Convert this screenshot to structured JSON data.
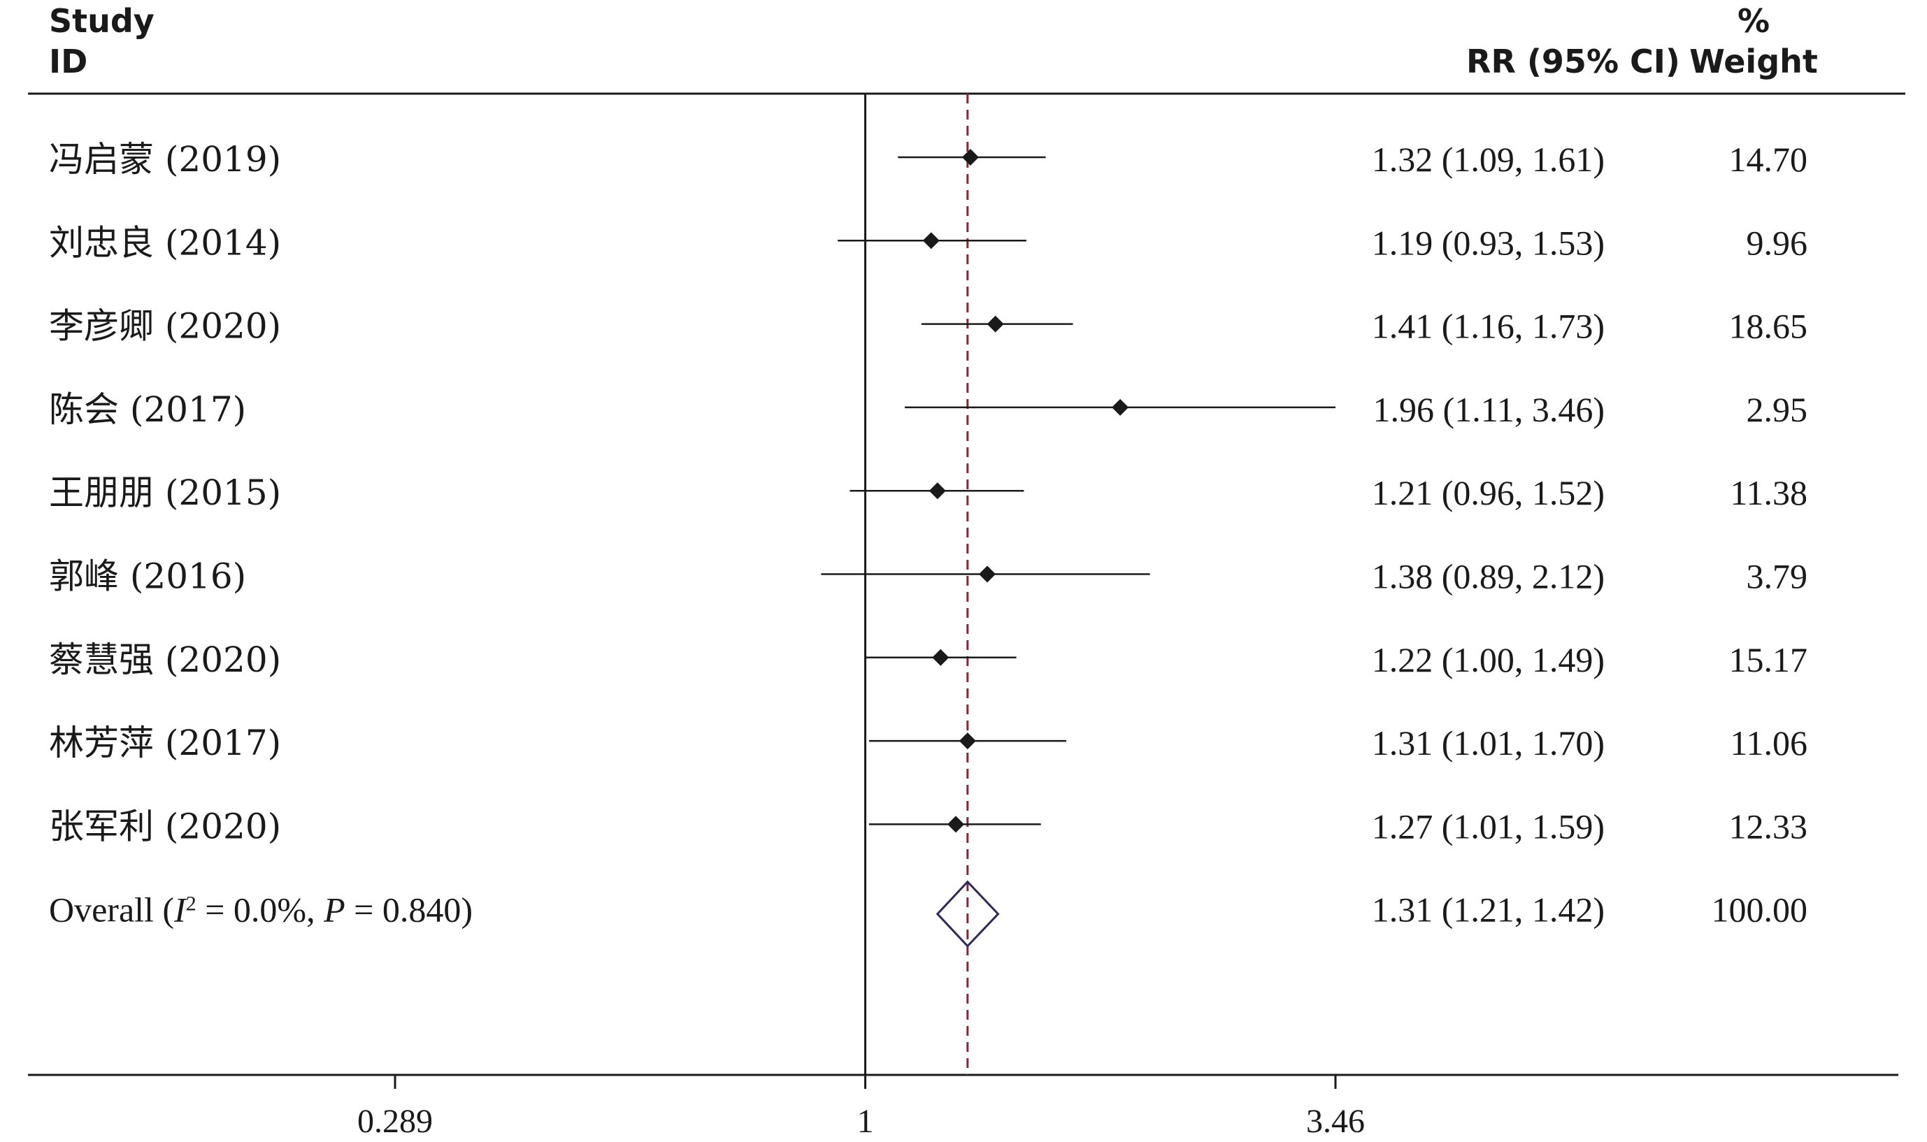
{
  "chart_data": {
    "type": "forest",
    "measure": "RR",
    "x_scale": "log",
    "xlim": [
      0.289,
      3.46
    ],
    "null_line": 1,
    "pooled_reference_line": 1.31,
    "xticks": [
      {
        "value": 0.289,
        "label": "0.289"
      },
      {
        "value": 1,
        "label": "1"
      },
      {
        "value": 3.46,
        "label": "3.46"
      }
    ],
    "headers": {
      "study_line1": "Study",
      "study_line2": "ID",
      "effect": "RR (95% CI)",
      "weight_line1": "%",
      "weight_line2": "Weight"
    },
    "studies": [
      {
        "name": "冯启蒙 (2019)",
        "rr": 1.32,
        "lo": 1.09,
        "hi": 1.61,
        "ci_text": "1.32 (1.09, 1.61)",
        "weight": "14.70"
      },
      {
        "name": "刘忠良 (2014)",
        "rr": 1.19,
        "lo": 0.93,
        "hi": 1.53,
        "ci_text": "1.19 (0.93, 1.53)",
        "weight": "9.96"
      },
      {
        "name": "李彦卿 (2020)",
        "rr": 1.41,
        "lo": 1.16,
        "hi": 1.73,
        "ci_text": "1.41 (1.16, 1.73)",
        "weight": "18.65"
      },
      {
        "name": "陈会 (2017)",
        "rr": 1.96,
        "lo": 1.11,
        "hi": 3.46,
        "ci_text": "1.96 (1.11, 3.46)",
        "weight": "2.95"
      },
      {
        "name": "王朋朋 (2015)",
        "rr": 1.21,
        "lo": 0.96,
        "hi": 1.52,
        "ci_text": "1.21 (0.96, 1.52)",
        "weight": "11.38"
      },
      {
        "name": "郭峰 (2016)",
        "rr": 1.38,
        "lo": 0.89,
        "hi": 2.12,
        "ci_text": "1.38 (0.89, 2.12)",
        "weight": "3.79"
      },
      {
        "name": "蔡慧强 (2020)",
        "rr": 1.22,
        "lo": 1.0,
        "hi": 1.49,
        "ci_text": "1.22 (1.00, 1.49)",
        "weight": "15.17"
      },
      {
        "name": "林芳萍 (2017)",
        "rr": 1.31,
        "lo": 1.01,
        "hi": 1.7,
        "ci_text": "1.31 (1.01, 1.70)",
        "weight": "11.06"
      },
      {
        "name": "张军利 (2020)",
        "rr": 1.27,
        "lo": 1.01,
        "hi": 1.59,
        "ci_text": "1.27 (1.01, 1.59)",
        "weight": "12.33"
      }
    ],
    "overall": {
      "label_prefix": "Overall  (",
      "i_symbol": "I",
      "i_sup": "2",
      "i_value": " = 0.0%, ",
      "p_symbol": "P",
      "p_value": " = 0.840)",
      "rr": 1.31,
      "lo": 1.21,
      "hi": 1.42,
      "ci_text": "1.31 (1.21, 1.42)",
      "weight": "100.00"
    },
    "colors": {
      "text": "#1a1a1a",
      "axis": "#1a1a1a",
      "marker": "#1a1a1a",
      "reference_line": "#7a2a3a",
      "diamond": "#2e2a5a"
    }
  }
}
